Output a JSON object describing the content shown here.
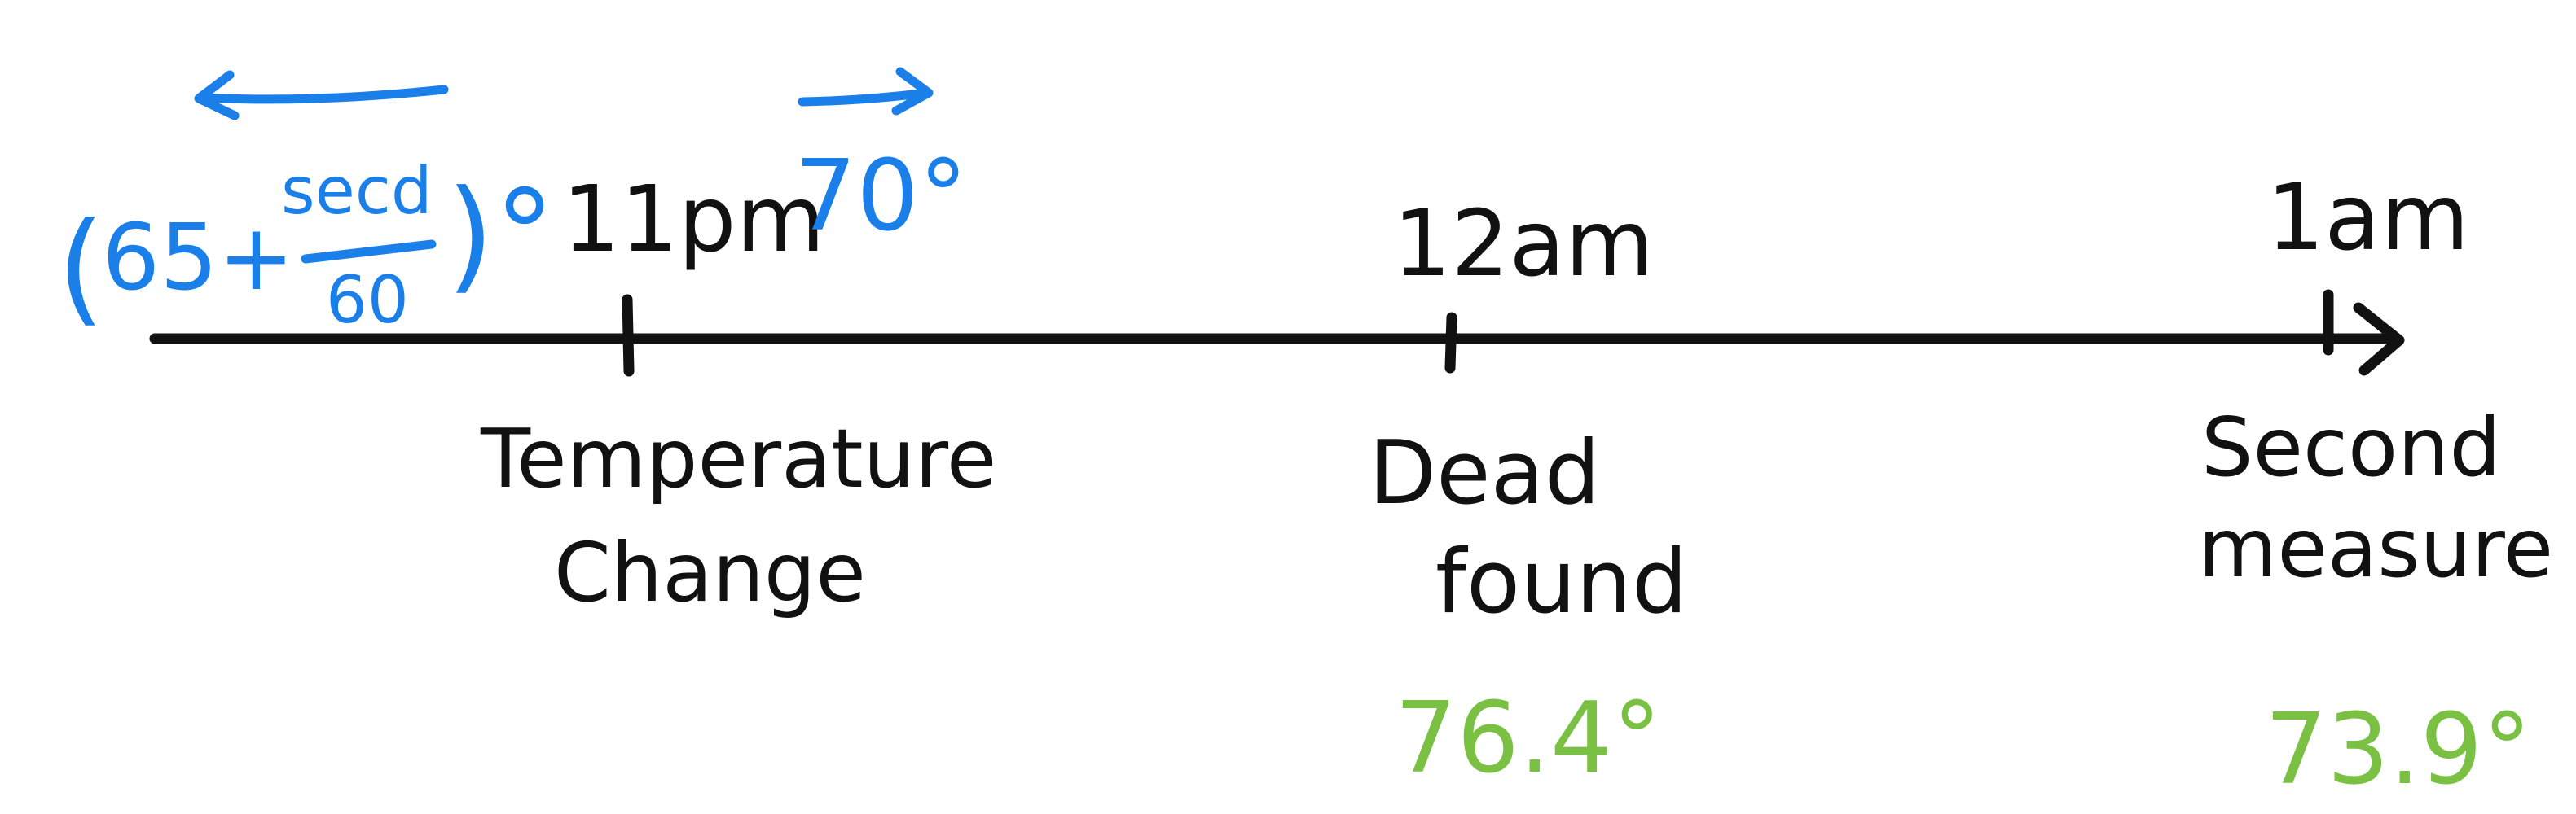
{
  "timeline": {
    "times": [
      {
        "label": "11pm",
        "event": [
          "Temperature",
          "Change"
        ],
        "temp": ""
      },
      {
        "label": "12am",
        "event": [
          "Dead",
          "found"
        ],
        "temp": "76.4°"
      },
      {
        "label": "1am",
        "event": [
          "Second",
          "measure"
        ],
        "temp": "73.9°"
      }
    ]
  },
  "before_label": {
    "open": "(",
    "prefix": "65+",
    "numerator": "secd",
    "denominator": "60",
    "close": ")°"
  },
  "after_label": "70°",
  "colors": {
    "ink": "#111111",
    "blue": "#1a7fe8",
    "green": "#7ac143"
  }
}
